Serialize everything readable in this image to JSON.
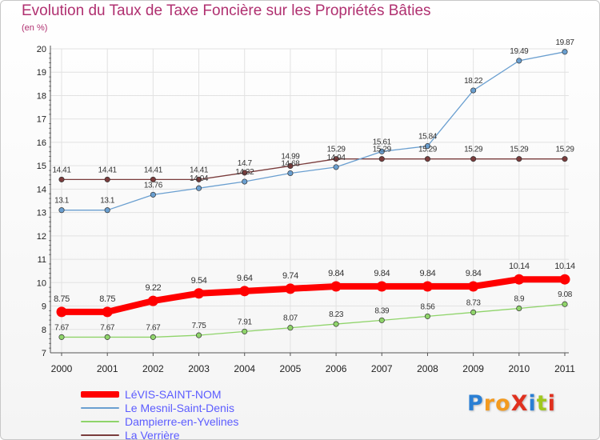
{
  "header": {
    "title": "Evolution du Taux de Taxe Foncière sur les Propriétés Bâties",
    "unit": "(en %)"
  },
  "chart_data": {
    "type": "line",
    "title": "Evolution du Taux de Taxe Foncière sur les Propriétés Bâties",
    "ylabel": "(en %)",
    "xlabel": "",
    "ylim": [
      7,
      20
    ],
    "y_ticks": [
      "7",
      "8",
      "9",
      "10",
      "11",
      "12",
      "13",
      "14",
      "15",
      "16",
      "17",
      "18",
      "19",
      "20"
    ],
    "categories": [
      "2000",
      "2001",
      "2002",
      "2003",
      "2004",
      "2005",
      "2006",
      "2007",
      "2008",
      "2009",
      "2010",
      "2011"
    ],
    "series": [
      {
        "name": "LéVIS-SAINT-NOM",
        "color": "#ff0000",
        "labels": [
          "8.75",
          "8.75",
          "9.22",
          "9.54",
          "9.64",
          "9.74",
          "9.84",
          "9.84",
          "9.84",
          "9.84",
          "10.14",
          "10.14"
        ],
        "values": [
          8.75,
          8.75,
          9.22,
          9.54,
          9.64,
          9.74,
          9.84,
          9.84,
          9.84,
          9.84,
          10.14,
          10.14
        ]
      },
      {
        "name": "Le Mesnil-Saint-Denis",
        "color": "#6a9fd0",
        "labels": [
          "13.1",
          "13.1",
          "13.76",
          "14.04",
          "14.32",
          "14.68",
          "14.94",
          "15.61",
          "15.84",
          "18.22",
          "19.49",
          "19.87"
        ],
        "values": [
          13.1,
          13.1,
          13.76,
          14.04,
          14.32,
          14.68,
          14.94,
          15.61,
          15.84,
          18.22,
          19.49,
          19.87
        ]
      },
      {
        "name": "Dampierre-en-Yvelines",
        "color": "#8fd46a",
        "labels": [
          "7.67",
          "7.67",
          "7.67",
          "7.75",
          "7.91",
          "8.07",
          "8.23",
          "8.39",
          "8.56",
          "8.73",
          "8.9",
          "9.08"
        ],
        "values": [
          7.67,
          7.67,
          7.67,
          7.75,
          7.91,
          8.07,
          8.23,
          8.39,
          8.56,
          8.73,
          8.9,
          9.08
        ]
      },
      {
        "name": "La Verrière",
        "color": "#7a3c3c",
        "labels": [
          "14.41",
          "14.41",
          "14.41",
          "14.41",
          "14.7",
          "14.99",
          "15.29",
          "15.29",
          "15.29",
          "15.29",
          "15.29",
          "15.29"
        ],
        "values": [
          14.41,
          14.41,
          14.41,
          14.41,
          14.7,
          14.99,
          15.29,
          15.29,
          15.29,
          15.29,
          15.29,
          15.29
        ]
      }
    ]
  },
  "logo": {
    "text": "ProXiti",
    "letter_colors": [
      "#2a7fd4",
      "#f39a1e",
      "#f39a1e",
      "#e0301e",
      "#2a7fd4",
      "#a0c81e",
      "#e0301e"
    ]
  }
}
